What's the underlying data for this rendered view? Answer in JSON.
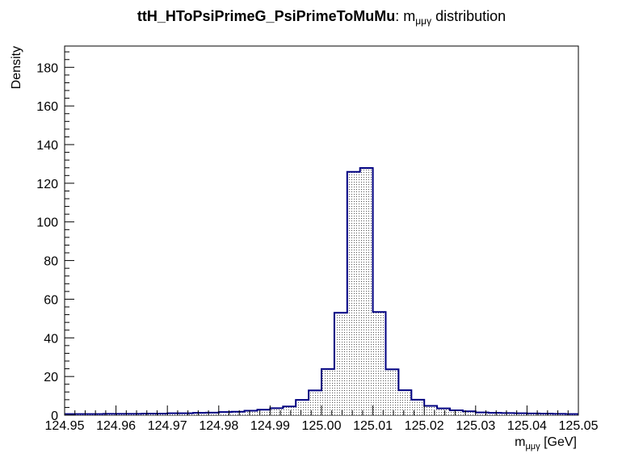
{
  "chart_data": {
    "type": "bar",
    "title_bold": "ttH_HToPsiPrimeG_PsiPrimeToMuMu",
    "title_rest_prefix": ": m",
    "title_rest_sub": "μμγ",
    "title_rest_suffix": " distribution",
    "xlabel_prefix": "m",
    "xlabel_sub": "μμγ",
    "xlabel_suffix": " [GeV]",
    "ylabel": "Density",
    "xlim": [
      124.95,
      125.05
    ],
    "ylim": [
      0,
      191
    ],
    "x_ticks": [
      "124.95",
      "124.96",
      "124.97",
      "124.98",
      "124.99",
      "125.00",
      "125.01",
      "125.02",
      "125.03",
      "125.04",
      "125.05"
    ],
    "y_ticks": [
      "0",
      "20",
      "40",
      "60",
      "80",
      "100",
      "120",
      "140",
      "160",
      "180"
    ],
    "bin_width": 0.0025,
    "bin_start": 124.95,
    "values": [
      0.6,
      0.6,
      0.6,
      0.7,
      0.7,
      0.7,
      0.8,
      0.8,
      1.0,
      1.0,
      1.2,
      1.3,
      1.6,
      1.8,
      2.3,
      2.8,
      3.6,
      4.5,
      7.9,
      12.8,
      23.9,
      53.0,
      125.9,
      127.9,
      53.4,
      23.7,
      12.9,
      8.0,
      4.8,
      3.5,
      2.5,
      2.0,
      1.4,
      1.2,
      1.1,
      1.0,
      0.9,
      0.8,
      0.7,
      0.6
    ],
    "line_color": "#000080",
    "fill_pattern": "dotted"
  }
}
